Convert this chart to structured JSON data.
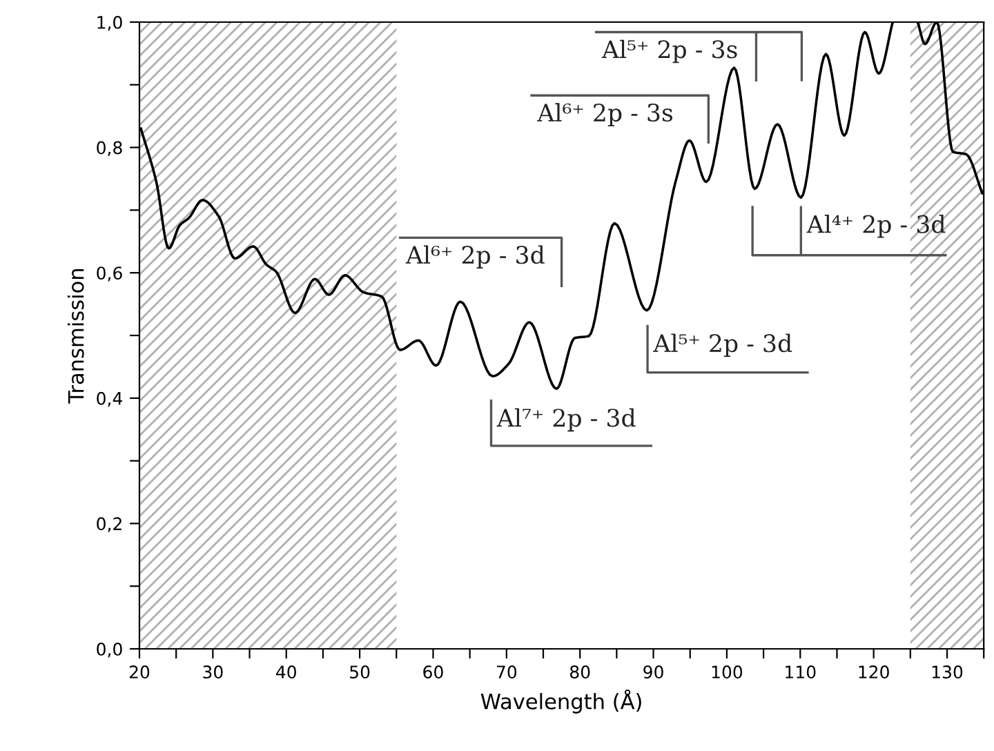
{
  "chart_data": {
    "type": "line",
    "xlabel": "Wavelength (Å)",
    "ylabel": "Transmission",
    "xlim": [
      20,
      135
    ],
    "ylim": [
      0,
      1
    ],
    "xticks": [
      20,
      {
        "value": 25,
        "label": null
      },
      30,
      {
        "value": 35,
        "label": null
      },
      40,
      {
        "value": 45,
        "label": null
      },
      50,
      {
        "value": 55,
        "label": null
      },
      60,
      {
        "value": 65,
        "label": null
      },
      70,
      {
        "value": 75,
        "label": null
      },
      80,
      {
        "value": 85,
        "label": null
      },
      90,
      {
        "value": 95,
        "label": null
      },
      100,
      {
        "value": 105,
        "label": null
      },
      110,
      {
        "value": 115,
        "label": null
      },
      120,
      {
        "value": 125,
        "label": null
      },
      130,
      {
        "value": 135,
        "label": null
      }
    ],
    "yticks": [
      {
        "value": 0,
        "label": "0,0"
      },
      {
        "value": 0.1,
        "label": null
      },
      {
        "value": 0.2,
        "label": "0,2"
      },
      {
        "value": 0.3,
        "label": null
      },
      {
        "value": 0.4,
        "label": "0,4"
      },
      {
        "value": 0.5,
        "label": null
      },
      {
        "value": 0.6,
        "label": "0,6"
      },
      {
        "value": 0.7,
        "label": null
      },
      {
        "value": 0.8,
        "label": "0,8"
      },
      {
        "value": 0.9,
        "label": null
      },
      {
        "value": 1.0,
        "label": "1,0"
      }
    ],
    "grid": false,
    "legend": false,
    "marker": "none",
    "line_style": "solid",
    "bands": [
      {
        "axis": "x",
        "from": 20,
        "to": 55,
        "color": "#b0b0b0"
      },
      {
        "axis": "x",
        "from": 125,
        "to": 135,
        "color": "#b0b0b0"
      }
    ],
    "series": [
      {
        "color": "#000000",
        "x": [
          20.2,
          22.3,
          24.0,
          25.5,
          26.7,
          28.6,
          30.8,
          33.0,
          35.5,
          37.3,
          38.6,
          41.2,
          43.9,
          45.8,
          48.0,
          50.5,
          53.0,
          55.5,
          58.0,
          60.4,
          63.7,
          68.1,
          70.3,
          73.1,
          76.8,
          79.3,
          81.2,
          84.7,
          89.1,
          93.1,
          94.9,
          97.2,
          101.0,
          103.8,
          106.9,
          110.1,
          113.5,
          116.0,
          118.8,
          120.7,
          122.6,
          124.3,
          126.0,
          127.0,
          128.6,
          130.8,
          132.6,
          134.8
        ],
        "values": [
          0.83,
          0.745,
          0.639,
          0.676,
          0.687,
          0.716,
          0.69,
          0.623,
          0.642,
          0.613,
          0.602,
          0.536,
          0.59,
          0.565,
          0.596,
          0.569,
          0.562,
          0.477,
          0.492,
          0.452,
          0.554,
          0.435,
          0.455,
          0.521,
          0.415,
          0.496,
          0.499,
          0.679,
          0.54,
          0.749,
          0.811,
          0.745,
          0.927,
          0.734,
          0.837,
          0.72,
          0.949,
          0.819,
          0.984,
          0.918,
          1.0,
          null,
          1.0,
          0.965,
          1.0,
          0.793,
          0.789,
          0.727
        ]
      },
      {
        "color": "#555555",
        "x": [
          55.5,
          77.5,
          77.5
        ],
        "values": [
          0.656,
          0.656,
          0.579
        ]
      },
      {
        "color": "#555555",
        "x": [
          67.9,
          67.9,
          89.7
        ],
        "values": [
          0.396,
          0.324,
          0.324
        ]
      },
      {
        "color": "#555555",
        "x": [
          89.2,
          89.2,
          111.0
        ],
        "values": [
          0.515,
          0.441,
          0.441
        ]
      },
      {
        "color": "#555555",
        "x": [
          103.5,
          103.5,
          110.1,
          110.1,
          110.1,
          129.8
        ],
        "values": [
          0.705,
          0.628,
          0.628,
          0.705,
          0.628,
          0.628
        ]
      },
      {
        "color": "#555555",
        "x": [
          73.4,
          97.5,
          97.5
        ],
        "values": [
          0.883,
          0.883,
          0.808
        ]
      },
      {
        "color": "#555555",
        "x": [
          82.2,
          110.2,
          110.2,
          110.2,
          104.0,
          104.0
        ],
        "values": [
          0.984,
          0.984,
          0.907,
          0.984,
          0.984,
          0.907
        ]
      }
    ],
    "annotations": [
      {
        "text": "Al⁶⁺ 2p - 3d",
        "x": 55.5,
        "y": 0.656
      },
      {
        "text": "Al⁷⁺ 2p - 3d",
        "x": 67.9,
        "y": 0.396
      },
      {
        "text": "Al⁵⁺ 2p - 3d",
        "x": 89.2,
        "y": 0.515
      },
      {
        "text": "Al⁴⁺ 2p - 3d",
        "x": 110.1,
        "y": 0.705
      },
      {
        "text": "Al⁶⁺ 2p - 3s",
        "x": 73.4,
        "y": 0.883
      },
      {
        "text": "Al⁵⁺ 2p - 3s",
        "x": 82.2,
        "y": 0.984
      }
    ]
  }
}
